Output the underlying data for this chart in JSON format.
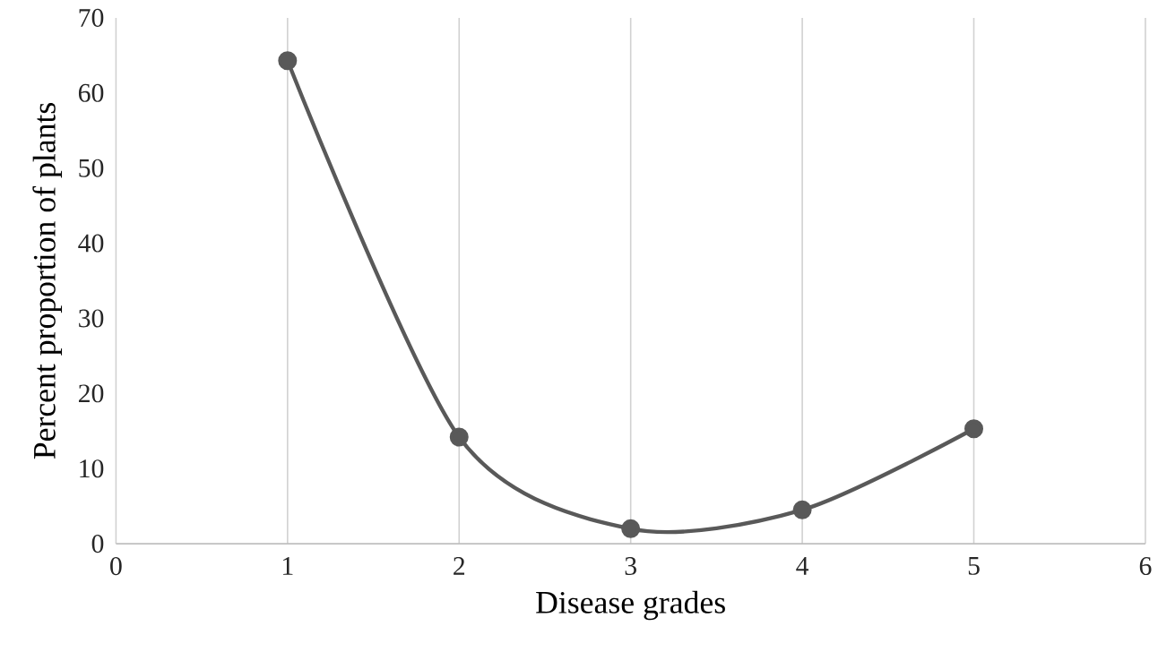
{
  "chart_data": {
    "type": "line",
    "xlabel": "Disease grades",
    "ylabel": "Percent proportion of plants",
    "x": [
      1,
      2,
      3,
      4,
      5
    ],
    "series": [
      {
        "color": "#595959",
        "values": [
          64.3,
          14.2,
          2.0,
          4.5,
          15.3
        ]
      }
    ],
    "xlim": [
      0,
      6
    ],
    "xticks": [
      0,
      1,
      2,
      3,
      4,
      5,
      6
    ],
    "ylim": [
      0,
      70
    ],
    "yticks": [
      0,
      10,
      20,
      30,
      40,
      50,
      60,
      70
    ],
    "grid": "x",
    "marker": "circle",
    "line_style": "solid"
  }
}
